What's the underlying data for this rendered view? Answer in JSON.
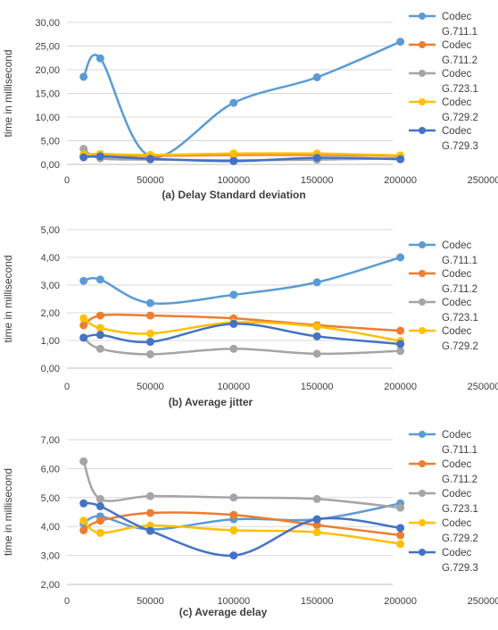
{
  "chart_data": [
    {
      "type": "line",
      "title": "(a)  Delay Standard deviation",
      "xlabel": "",
      "ylabel": "time in millisecond",
      "xlim": [
        0,
        250000
      ],
      "ylim": [
        0,
        30
      ],
      "x_ticks": [
        0,
        50000,
        100000,
        150000,
        200000,
        250000
      ],
      "x_tick_labels": [
        "0",
        "50000",
        "100000",
        "150000",
        "200000",
        "250000"
      ],
      "y_ticks": [
        0,
        5,
        10,
        15,
        20,
        25,
        30
      ],
      "y_tick_labels": [
        "0,00",
        "5,00",
        "10,00",
        "15,00",
        "20,00",
        "25,00",
        "30,00"
      ],
      "grid": "horizontal",
      "legend": "right",
      "x": [
        10000,
        20000,
        50000,
        100000,
        150000,
        200000
      ],
      "series": [
        {
          "name": "Codec G.711.1",
          "color": "#5b9bd5",
          "values": [
            18.5,
            22.4,
            1.7,
            13.0,
            18.4,
            25.9
          ]
        },
        {
          "name": "Codec G.711.2",
          "color": "#ed7d31",
          "values": [
            2.0,
            2.0,
            1.8,
            2.0,
            2.0,
            1.8
          ]
        },
        {
          "name": "Codec G.723.1",
          "color": "#a5a5a5",
          "values": [
            3.3,
            1.3,
            1.0,
            0.9,
            1.0,
            1.3
          ]
        },
        {
          "name": "Codec G.729.2",
          "color": "#ffc000",
          "values": [
            2.1,
            2.2,
            2.0,
            2.3,
            2.3,
            1.9
          ]
        },
        {
          "name": "Codec G.729.3",
          "color": "#4472c4",
          "values": [
            1.5,
            1.7,
            1.2,
            0.7,
            1.4,
            1.1
          ]
        }
      ]
    },
    {
      "type": "line",
      "title": "(b)  Average jitter",
      "xlabel": "",
      "ylabel": "time in millisecond",
      "xlim": [
        0,
        250000
      ],
      "ylim": [
        0,
        5
      ],
      "x_ticks": [
        0,
        50000,
        100000,
        150000,
        200000,
        250000
      ],
      "x_tick_labels": [
        "0",
        "50000",
        "100000",
        "150000",
        "200000",
        "250000"
      ],
      "y_ticks": [
        0,
        1,
        2,
        3,
        4,
        5
      ],
      "y_tick_labels": [
        "0,00",
        "1,00",
        "2,00",
        "3,00",
        "4,00",
        "5,00"
      ],
      "grid": "horizontal",
      "legend": "right",
      "x": [
        10000,
        20000,
        50000,
        100000,
        150000,
        200000
      ],
      "series": [
        {
          "name": "Codec G.711.1",
          "color": "#5b9bd5",
          "values": [
            3.15,
            3.2,
            2.35,
            2.65,
            3.1,
            4.0
          ]
        },
        {
          "name": "Codec G.711.2",
          "color": "#ed7d31",
          "values": [
            1.55,
            1.9,
            1.9,
            1.8,
            1.55,
            1.35
          ]
        },
        {
          "name": "Codec G.723.1",
          "color": "#a5a5a5",
          "values": [
            1.1,
            0.7,
            0.5,
            0.7,
            0.52,
            0.62
          ]
        },
        {
          "name": "Codec G.729.2",
          "color": "#ffc000",
          "values": [
            1.8,
            1.45,
            1.25,
            1.65,
            1.5,
            0.98
          ]
        },
        {
          "name": "",
          "color": "#4472c4",
          "values": [
            1.1,
            1.2,
            0.95,
            1.6,
            1.15,
            0.87
          ]
        }
      ]
    },
    {
      "type": "line",
      "title": "(c)   Average delay",
      "xlabel": "",
      "ylabel": "time in millisecond",
      "xlim": [
        0,
        250000
      ],
      "ylim": [
        2,
        7
      ],
      "x_ticks": [
        0,
        50000,
        100000,
        150000,
        200000,
        250000
      ],
      "x_tick_labels": [
        "0",
        "50000",
        "100000",
        "150000",
        "200000",
        "250000"
      ],
      "y_ticks": [
        2,
        3,
        4,
        5,
        6,
        7
      ],
      "y_tick_labels": [
        "2,00",
        "3,00",
        "4,00",
        "5,00",
        "6,00",
        "7,00"
      ],
      "grid": "horizontal",
      "legend": "right",
      "x": [
        10000,
        20000,
        50000,
        100000,
        150000,
        200000
      ],
      "series": [
        {
          "name": "Codec G.711.1",
          "color": "#5b9bd5",
          "values": [
            4.1,
            4.35,
            3.9,
            4.25,
            4.25,
            4.8
          ]
        },
        {
          "name": "Codec G.711.2",
          "color": "#ed7d31",
          "values": [
            3.87,
            4.2,
            4.47,
            4.4,
            4.05,
            3.7
          ]
        },
        {
          "name": "Codec G.723.1",
          "color": "#a5a5a5",
          "values": [
            6.25,
            4.95,
            5.05,
            5.0,
            4.95,
            4.65
          ]
        },
        {
          "name": "Codec G.729.2",
          "color": "#ffc000",
          "values": [
            4.2,
            3.78,
            4.03,
            3.87,
            3.8,
            3.4
          ]
        },
        {
          "name": "Codec G.729.3",
          "color": "#4472c4",
          "values": [
            4.8,
            4.7,
            3.85,
            3.0,
            4.25,
            3.95
          ]
        }
      ]
    }
  ]
}
